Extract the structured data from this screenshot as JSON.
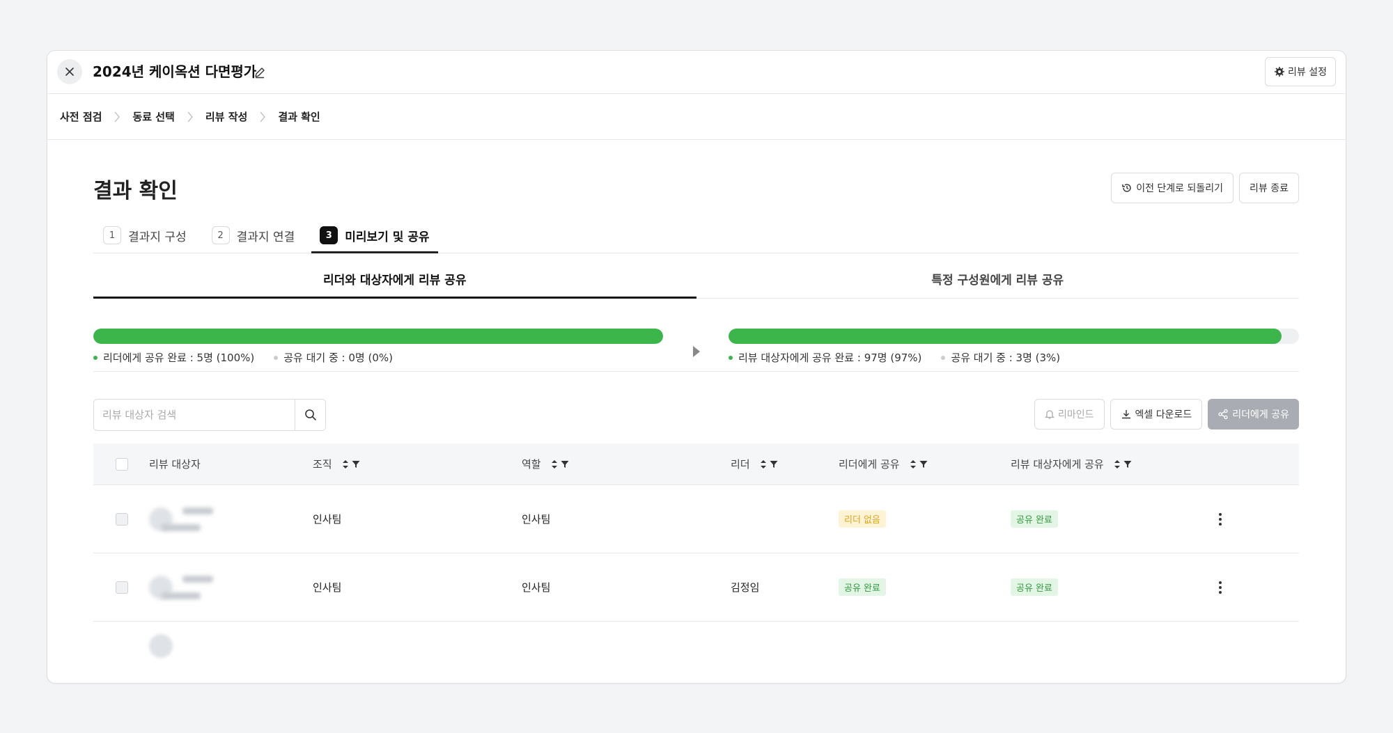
{
  "window": {
    "title": "2024년 케이옥션 다면평가",
    "settings_label": "리뷰 설정"
  },
  "breadcrumb": [
    "사전 점검",
    "동료 선택",
    "리뷰 작성",
    "결과 확인"
  ],
  "page": {
    "title": "결과 확인",
    "revert_label": "이전 단계로 되돌리기",
    "end_review_label": "리뷰 종료"
  },
  "steps": [
    {
      "num": "1",
      "label": "결과지 구성"
    },
    {
      "num": "2",
      "label": "결과지 연결"
    },
    {
      "num": "3",
      "label": "미리보기 및 공유"
    }
  ],
  "share_tabs": [
    "리더와 대상자에게 리뷰 공유",
    "특정 구성원에게 리뷰 공유"
  ],
  "progress": {
    "left": {
      "fill_ratio": 1.0,
      "done_label": "리더에게 공유 완료 : 5명 (100%)",
      "pending_label": "공유 대기 중 : 0명 (0%)"
    },
    "right": {
      "fill_ratio": 0.97,
      "done_label": "리뷰 대상자에게 공유 완료 : 97명 (97%)",
      "pending_label": "공유 대기 중 : 3명 (3%)"
    },
    "colors": {
      "done": "#3cb54a",
      "pending": "#cccccc"
    }
  },
  "search": {
    "placeholder": "리뷰 대상자 검색"
  },
  "table_actions": {
    "remind_label": "리마인드",
    "excel_label": "엑셀 다운로드",
    "share_leader_label": "리더에게 공유"
  },
  "table": {
    "headers": {
      "target": "리뷰 대상자",
      "org": "조직",
      "role": "역할",
      "leader": "리더",
      "share_leader": "리더에게 공유",
      "share_target": "리뷰 대상자에게 공유"
    },
    "rows": [
      {
        "org": "인사팀",
        "role": "인사팀",
        "leader": "",
        "share_leader": "리더 없음",
        "share_target": "공유 완료"
      },
      {
        "org": "인사팀",
        "role": "인사팀",
        "leader": "김정임",
        "share_leader": "공유 완료",
        "share_target": "공유 완료"
      }
    ]
  }
}
